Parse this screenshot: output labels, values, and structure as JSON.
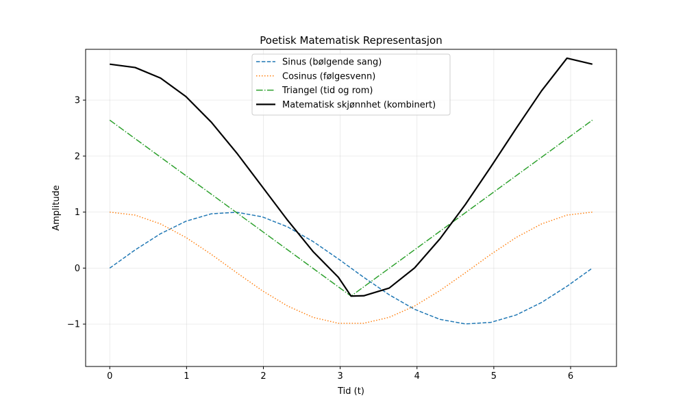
{
  "chart_data": {
    "type": "line",
    "title": "Poetisk Matematisk Representasjon",
    "xlabel": "Tid (t)",
    "ylabel": "Amplitude",
    "xlim": [
      -0.3142,
      6.5974
    ],
    "ylim": [
      -1.757,
      3.907
    ],
    "xticks": [
      0,
      1,
      2,
      3,
      4,
      5,
      6
    ],
    "yticks": [
      -1,
      0,
      1,
      2,
      3
    ],
    "ytick_labels": [
      "−1",
      "0",
      "1",
      "2",
      "3"
    ],
    "grid": true,
    "legend_position": "upper-center",
    "series": [
      {
        "name": "Sinus (bølgende sang)",
        "color": "#1f77b4",
        "style": "dashed",
        "x": [
          0,
          0.3307,
          0.6614,
          0.9921,
          1.3228,
          1.6535,
          1.9842,
          2.3149,
          2.6456,
          2.9763,
          3.307,
          3.6377,
          3.9684,
          4.2991,
          4.6298,
          4.9605,
          5.2912,
          5.6219,
          5.9526,
          6.2832
        ],
        "y": [
          0,
          0.325,
          0.614,
          0.837,
          0.97,
          0.997,
          0.916,
          0.736,
          0.476,
          0.164,
          -0.165,
          -0.476,
          -0.736,
          -0.916,
          -0.997,
          -0.97,
          -0.837,
          -0.614,
          -0.325,
          0
        ]
      },
      {
        "name": "Cosinus (følgesvenn)",
        "color": "#ff7f0e",
        "style": "dotted",
        "x": [
          0,
          0.3307,
          0.6614,
          0.9921,
          1.3228,
          1.6535,
          1.9842,
          2.3149,
          2.6456,
          2.9763,
          3.307,
          3.6377,
          3.9684,
          4.2991,
          4.6298,
          4.9605,
          5.2912,
          5.6219,
          5.9526,
          6.2832
        ],
        "y": [
          1,
          0.946,
          0.789,
          0.547,
          0.245,
          -0.083,
          -0.402,
          -0.677,
          -0.879,
          -0.986,
          -0.986,
          -0.879,
          -0.677,
          -0.402,
          -0.083,
          0.245,
          0.547,
          0.789,
          0.946,
          1
        ]
      },
      {
        "name": "Triangel (tid og rom)",
        "color": "#2ca02c",
        "style": "dashdot",
        "x": [
          0,
          3.1416,
          6.2832
        ],
        "y": [
          2.642,
          -0.5,
          2.642
        ]
      },
      {
        "name": "Matematisk skjønnhet (kombinert)",
        "color": "#000000",
        "style": "solid",
        "x": [
          0,
          0.3307,
          0.6614,
          0.9921,
          1.3228,
          1.6535,
          1.9842,
          2.3149,
          2.6456,
          2.9763,
          3.1416,
          3.307,
          3.6377,
          3.9684,
          4.2991,
          4.6298,
          4.9605,
          5.2912,
          5.6219,
          5.9526,
          6.2832
        ],
        "y": [
          3.642,
          3.582,
          3.393,
          3.063,
          2.605,
          2.055,
          1.456,
          0.855,
          0.297,
          -0.164,
          -0.5,
          -0.494,
          -0.357,
          0.003,
          0.523,
          1.136,
          1.806,
          2.496,
          3.166,
          3.749,
          3.642
        ]
      }
    ]
  }
}
